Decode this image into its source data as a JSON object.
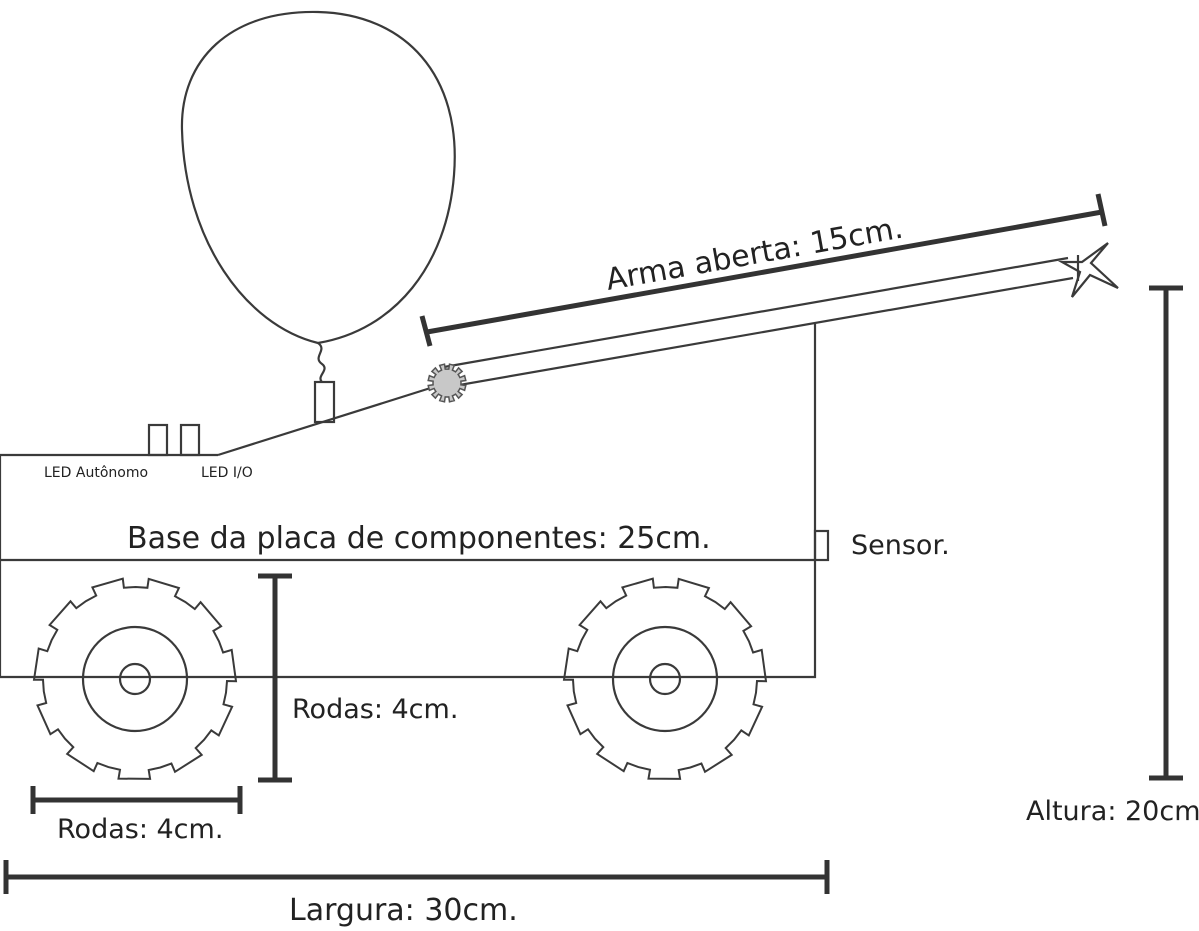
{
  "labels": {
    "led_autonomo": "LED Autônomo",
    "led_io": "LED I/O",
    "base": "Base da placa de componentes: 25cm.",
    "sensor": "Sensor.",
    "arma": "Arma aberta: 15cm.",
    "rodas_altura": "Rodas: 4cm.",
    "rodas_largura": "Rodas: 4cm.",
    "largura": "Largura: 30cm.",
    "altura": "Altura: 20cm."
  },
  "colors": {
    "stroke": "#3a3a3a",
    "gear_fill": "#c8c8c8",
    "text": "#222222"
  }
}
